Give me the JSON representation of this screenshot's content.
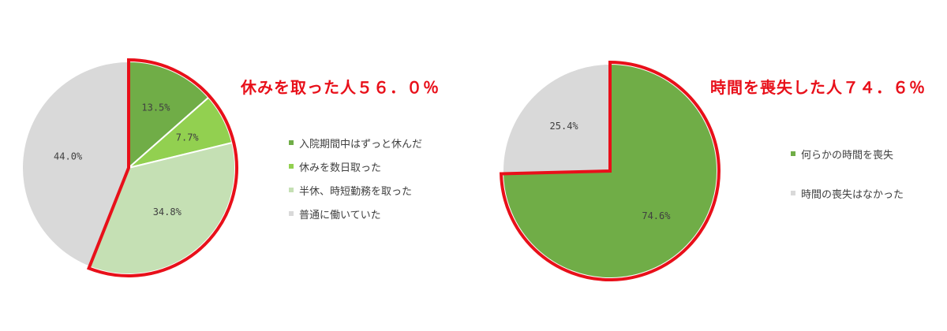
{
  "chart_data": [
    {
      "type": "pie",
      "title": "休みを取った人５６．０％",
      "labels": [
        "入院期間中はずっと休んだ",
        "休みを数日取った",
        "半休、時短勤務を取った",
        "普通に働いていた"
      ],
      "values": [
        13.5,
        7.7,
        34.8,
        44.0
      ],
      "value_labels": [
        "13.5%",
        "7.7%",
        "34.8%",
        "44.0%"
      ],
      "colors": [
        "#70ad47",
        "#92d050",
        "#c5e0b4",
        "#d9d9d9"
      ],
      "highlight": {
        "from": 0,
        "to": 2,
        "stroke": "#e8101a"
      },
      "legend_position": "right"
    },
    {
      "type": "pie",
      "title": "時間を喪失した人７４．６％",
      "labels": [
        "何らかの時間を喪失",
        "時間の喪失はなかった"
      ],
      "values": [
        74.6,
        25.4
      ],
      "value_labels": [
        "74.6%",
        "25.4%"
      ],
      "colors": [
        "#70ad47",
        "#d9d9d9"
      ],
      "highlight": {
        "from": 0,
        "to": 0,
        "stroke": "#e8101a"
      },
      "legend_position": "right"
    }
  ]
}
